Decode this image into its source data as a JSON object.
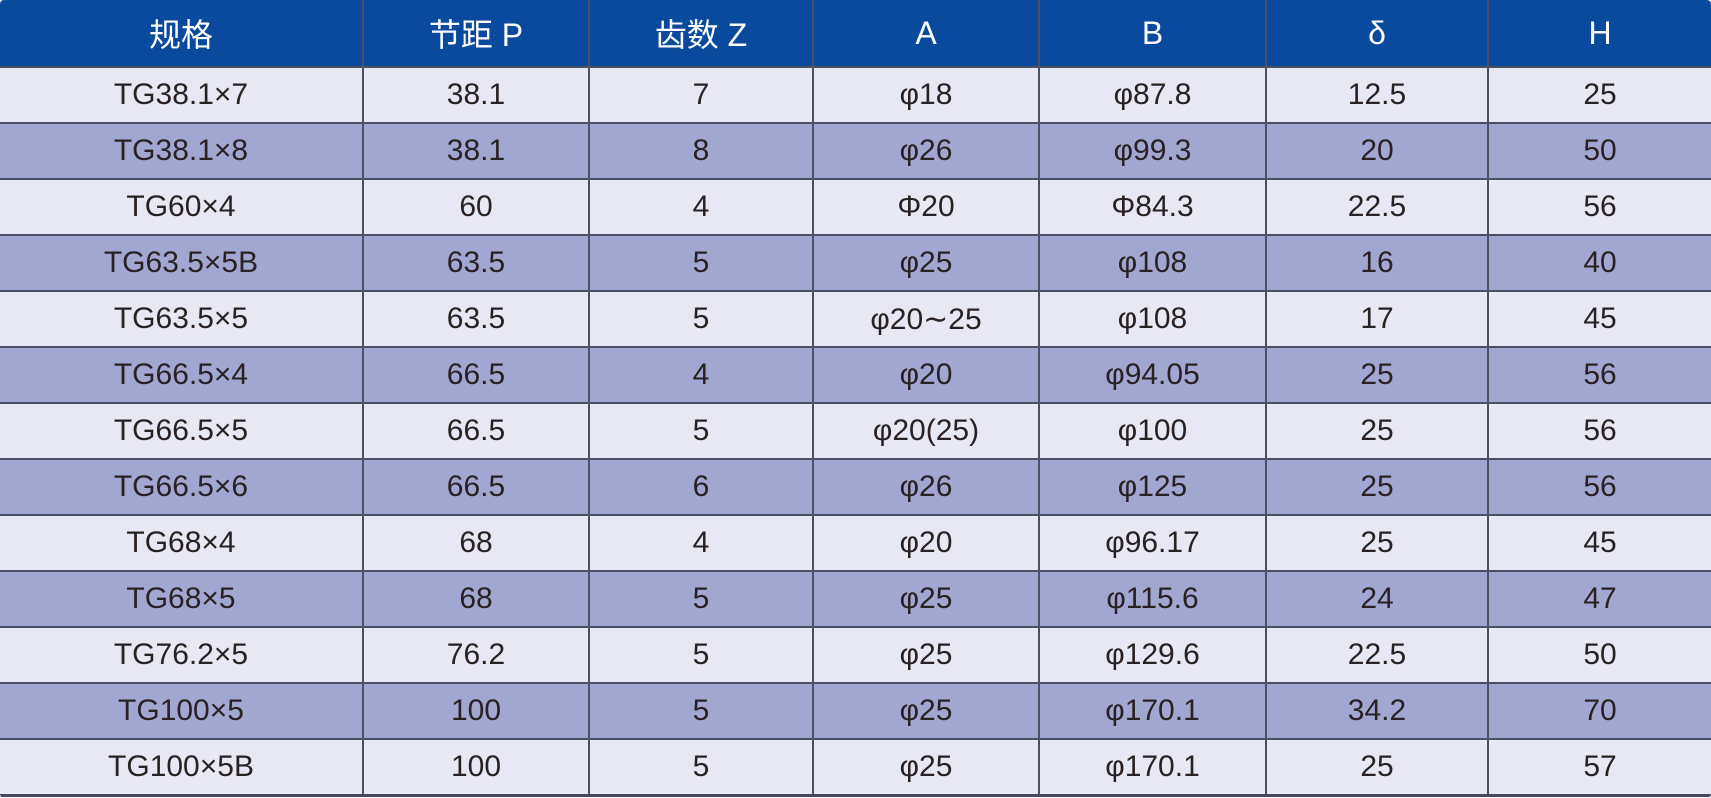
{
  "table": {
    "columns": [
      "规格",
      "节距 P",
      "齿数 Z",
      "A",
      "B",
      "δ",
      "H"
    ],
    "rows": [
      [
        "TG38.1×7",
        "38.1",
        "7",
        "φ18",
        "φ87.8",
        "12.5",
        "25"
      ],
      [
        "TG38.1×8",
        "38.1",
        "8",
        "φ26",
        "φ99.3",
        "20",
        "50"
      ],
      [
        "TG60×4",
        "60",
        "4",
        "Φ20",
        "Φ84.3",
        "22.5",
        "56"
      ],
      [
        "TG63.5×5B",
        "63.5",
        "5",
        "φ25",
        "φ108",
        "16",
        "40"
      ],
      [
        "TG63.5×5",
        "63.5",
        "5",
        "φ20∼25",
        "φ108",
        "17",
        "45"
      ],
      [
        "TG66.5×4",
        "66.5",
        "4",
        "φ20",
        "φ94.05",
        "25",
        "56"
      ],
      [
        "TG66.5×5",
        "66.5",
        "5",
        "φ20(25)",
        "φ100",
        "25",
        "56"
      ],
      [
        "TG66.5×6",
        "66.5",
        "6",
        "φ26",
        "φ125",
        "25",
        "56"
      ],
      [
        "TG68×4",
        "68",
        "4",
        "φ20",
        "φ96.17",
        "25",
        "45"
      ],
      [
        "TG68×5",
        "68",
        "5",
        "φ25",
        "φ115.6",
        "24",
        "47"
      ],
      [
        "TG76.2×5",
        "76.2",
        "5",
        "φ25",
        "φ129.6",
        "22.5",
        "50"
      ],
      [
        "TG100×5",
        "100",
        "5",
        "φ25",
        "φ170.1",
        "34.2",
        "70"
      ],
      [
        "TG100×5B",
        "100",
        "5",
        "φ25",
        "φ170.1",
        "25",
        "57"
      ]
    ]
  },
  "colors": {
    "header_bg": "#09499e",
    "header_text": "#ffffff",
    "row_light": "#e7e8f3",
    "row_dark": "#a2a7d1",
    "border": "#4b5062",
    "cell_text": "#2a2123"
  }
}
